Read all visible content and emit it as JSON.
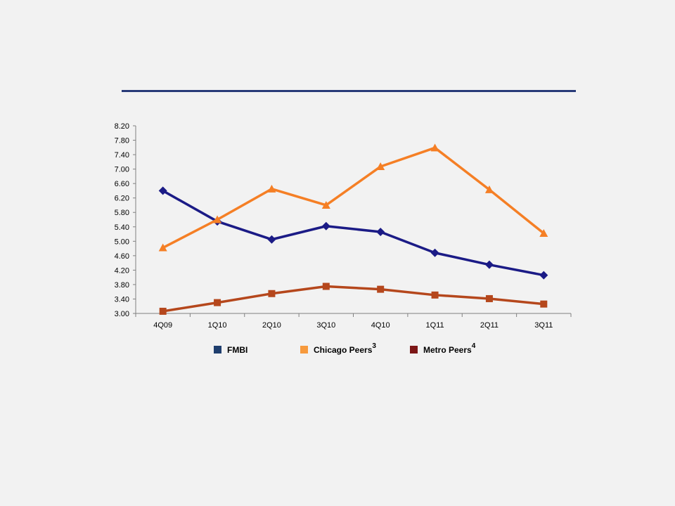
{
  "chart_data": {
    "type": "line",
    "categories": [
      "4Q09",
      "1Q10",
      "2Q10",
      "3Q10",
      "4Q10",
      "1Q11",
      "2Q11",
      "3Q11"
    ],
    "ylim": [
      3.0,
      8.2
    ],
    "yticks": [
      "3.00",
      "3.40",
      "3.80",
      "4.20",
      "4.60",
      "5.00",
      "5.40",
      "5.80",
      "6.20",
      "6.60",
      "7.00",
      "7.40",
      "7.80",
      "8.20"
    ],
    "grid": false,
    "legend_position": "bottom",
    "series": [
      {
        "name": "FMBI",
        "footnote": "",
        "line_color": "#1b1b86",
        "legend_color": "#1f3e6e",
        "marker": "diamond",
        "values": [
          6.4,
          5.55,
          5.05,
          5.42,
          5.26,
          4.68,
          4.35,
          4.06
        ]
      },
      {
        "name": "Chicago Peers",
        "footnote": "3",
        "line_color": "#f57f25",
        "legend_color": "#f79a3d",
        "marker": "triangle",
        "values": [
          4.82,
          5.6,
          6.45,
          6.0,
          7.07,
          7.59,
          6.43,
          5.22
        ]
      },
      {
        "name": "Metro Peers",
        "footnote": "4",
        "line_color": "#b5471c",
        "legend_color": "#7c1616",
        "marker": "square",
        "values": [
          3.06,
          3.3,
          3.55,
          3.75,
          3.67,
          3.51,
          3.41,
          3.26
        ]
      }
    ]
  }
}
